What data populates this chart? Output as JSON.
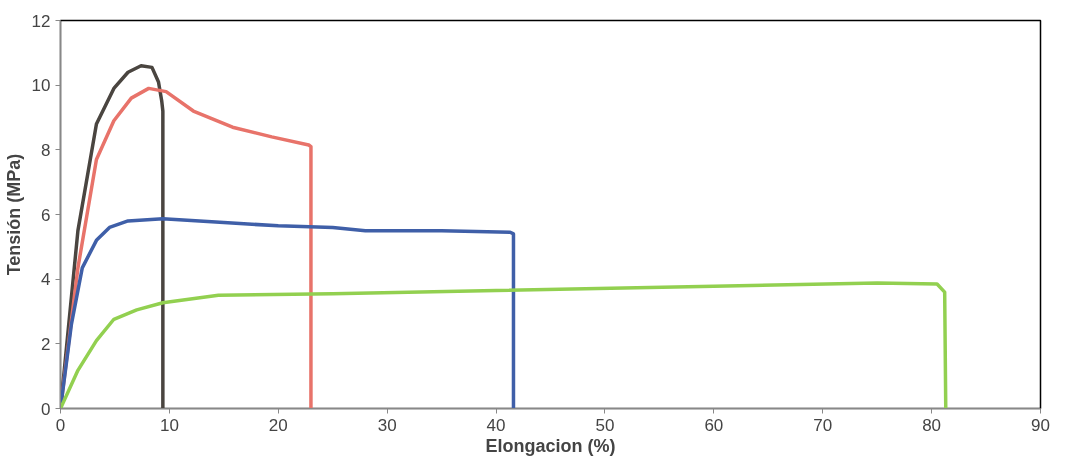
{
  "chart_data": {
    "type": "line",
    "xlabel": "Elongacion (%)",
    "ylabel": "Tensión (MPa)",
    "xlim": [
      0,
      90
    ],
    "ylim": [
      0,
      12
    ],
    "xticks": [
      0,
      10,
      20,
      30,
      40,
      50,
      60,
      70,
      80,
      90
    ],
    "yticks": [
      0,
      2,
      4,
      6,
      8,
      10,
      12
    ],
    "grid": false,
    "marker": "none",
    "line_style": "solid",
    "series": [
      {
        "color": "#4a4540",
        "x": [
          0,
          1.6,
          3.3,
          4.9,
          6.2,
          7.4,
          8.4,
          9.0,
          9.3,
          9.4,
          9.4
        ],
        "values": [
          0,
          5.5,
          8.8,
          9.9,
          10.4,
          10.6,
          10.55,
          10.1,
          9.5,
          9.2,
          0
        ]
      },
      {
        "color": "#e8736a",
        "x": [
          0,
          1.6,
          3.3,
          4.9,
          6.5,
          8.1,
          9.7,
          12.2,
          15.8,
          19.4,
          22.8,
          23.0,
          23.0
        ],
        "values": [
          0,
          4.35,
          7.7,
          8.9,
          9.6,
          9.9,
          9.8,
          9.2,
          8.7,
          8.4,
          8.15,
          8.1,
          0
        ]
      },
      {
        "color": "#3f5fa8",
        "x": [
          0,
          1.0,
          2.0,
          3.3,
          4.5,
          6.2,
          9.4,
          15,
          20,
          25,
          28,
          35,
          41.3,
          41.6,
          41.6
        ],
        "values": [
          0,
          2.6,
          4.35,
          5.2,
          5.6,
          5.8,
          5.87,
          5.75,
          5.65,
          5.6,
          5.5,
          5.5,
          5.45,
          5.4,
          0
        ]
      },
      {
        "color": "#92d050",
        "x": [
          0,
          1.6,
          3.3,
          4.9,
          7.0,
          9.4,
          14.5,
          25,
          40,
          60,
          75,
          80.5,
          81.2,
          81.3
        ],
        "values": [
          0,
          1.18,
          2.1,
          2.76,
          3.05,
          3.27,
          3.5,
          3.55,
          3.65,
          3.78,
          3.88,
          3.85,
          3.6,
          0
        ]
      }
    ]
  }
}
